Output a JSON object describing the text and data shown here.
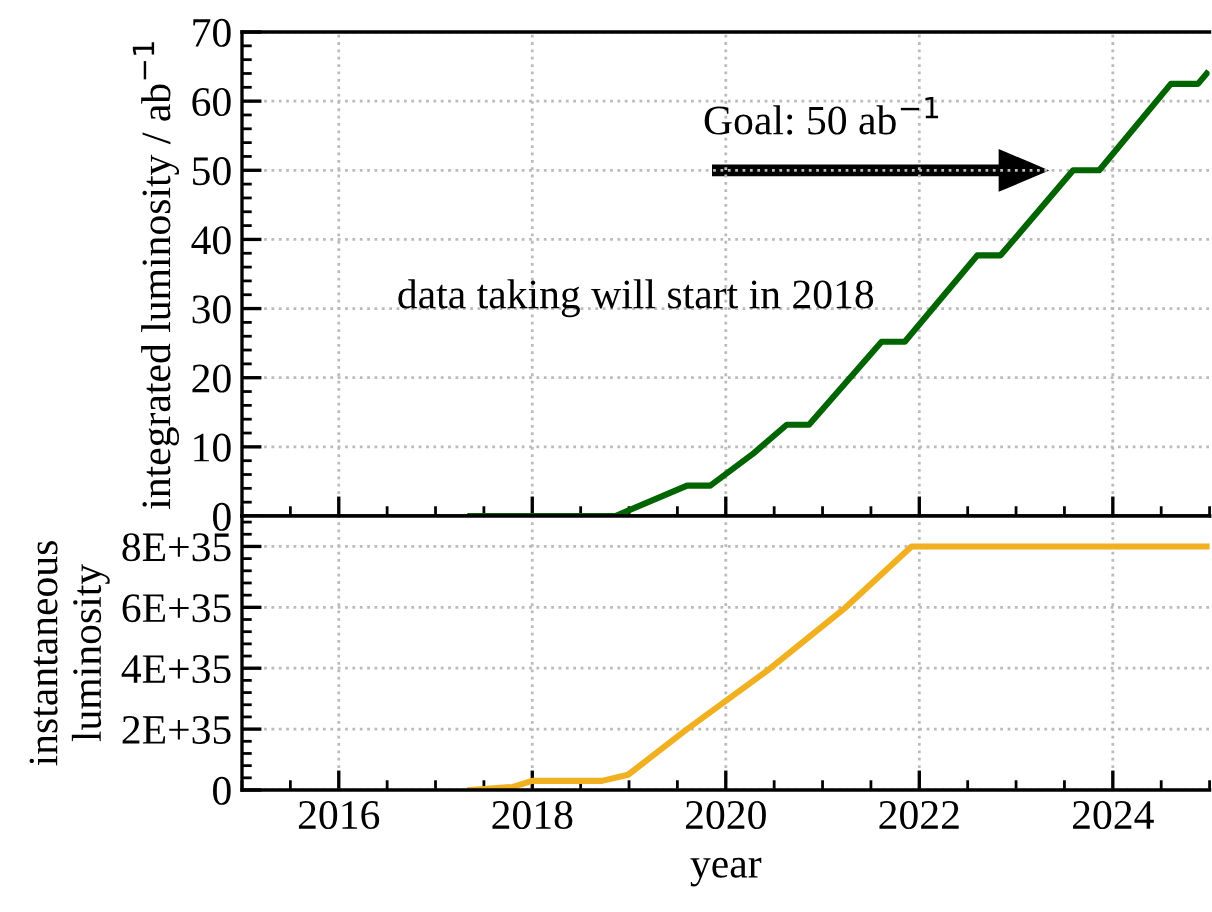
{
  "chart_data": [
    {
      "type": "line",
      "ylabel": "integrated luminosity / ab$^{−1}$",
      "xlim": [
        2015,
        2025
      ],
      "xticks": [
        2016,
        2018,
        2020,
        2022,
        2024
      ],
      "ylim": [
        0,
        70
      ],
      "yticks": [
        0,
        10,
        20,
        30,
        40,
        50,
        60,
        70
      ],
      "tick_labels": "y",
      "grid": true,
      "marker": "none",
      "line_style": "solid",
      "series": [
        {
          "color": "#006400",
          "x": [
            2017.36,
            2018.86,
            2019.6,
            2019.84,
            2020.29,
            2020.63,
            2020.86,
            2021.61,
            2021.85,
            2022.6,
            2022.84,
            2023.59,
            2023.86,
            2024.6,
            2024.88,
            2024.97
          ],
          "values": [
            0,
            0,
            4.4,
            4.4,
            9.1,
            13.2,
            13.2,
            25.2,
            25.2,
            37.7,
            37.7,
            50,
            50,
            62.5,
            62.5,
            64
          ]
        }
      ],
      "annotations": [
        "Goal: 50 ab$^{−1}$",
        "data taking will start in 2018"
      ]
    },
    {
      "type": "line",
      "xlabel": "year",
      "ylabel": "instantaneous\nluminosity",
      "xlim": [
        2015,
        2025
      ],
      "xticks": [
        2016,
        2018,
        2020,
        2022,
        2024
      ],
      "ylim": [
        0,
        9e+35
      ],
      "yticks": [
        0,
        {
          "value": 2e+35,
          "label": "2E+35"
        },
        {
          "value": 4e+35,
          "label": "4E+35"
        },
        {
          "value": 6e+35,
          "label": "6E+35"
        },
        {
          "value": 8e+35,
          "label": "8E+35"
        }
      ],
      "grid": true,
      "marker": "none",
      "line_style": "solid",
      "series": [
        {
          "color": "#f0b020",
          "x": [
            2017.36,
            2017.8,
            2018.0,
            2018.72,
            2018.99,
            2019.6,
            2020.42,
            2021.24,
            2021.92,
            2025
          ],
          "values": [
            0,
            1e+34,
            3e+34,
            3e+34,
            5e+34,
            2e+35,
            3.9e+35,
            6e+35,
            8e+35,
            8e+35
          ]
        }
      ]
    }
  ]
}
